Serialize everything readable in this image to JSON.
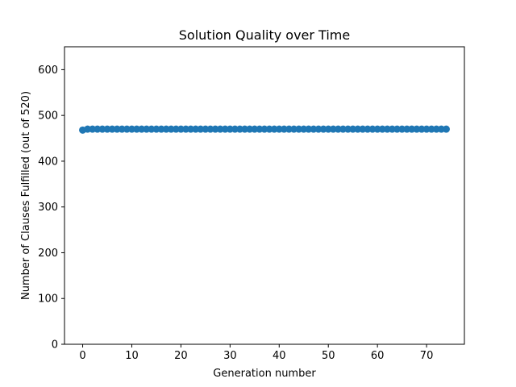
{
  "chart_data": {
    "type": "scatter",
    "title": "Solution Quality over Time",
    "xlabel": "Generation number",
    "ylabel": "Number of Clauses Fulfilled (out of 520)",
    "xlim": [
      -3.7,
      77.7
    ],
    "ylim": [
      0,
      650
    ],
    "xticks": [
      0,
      10,
      20,
      30,
      40,
      50,
      60,
      70
    ],
    "yticks": [
      0,
      100,
      200,
      300,
      400,
      500,
      600
    ],
    "grid": false,
    "series": [
      {
        "color": "#1f77b4",
        "x": [
          0,
          1,
          2,
          3,
          4,
          5,
          6,
          7,
          8,
          9,
          10,
          11,
          12,
          13,
          14,
          15,
          16,
          17,
          18,
          19,
          20,
          21,
          22,
          23,
          24,
          25,
          26,
          27,
          28,
          29,
          30,
          31,
          32,
          33,
          34,
          35,
          36,
          37,
          38,
          39,
          40,
          41,
          42,
          43,
          44,
          45,
          46,
          47,
          48,
          49,
          50,
          51,
          52,
          53,
          54,
          55,
          56,
          57,
          58,
          59,
          60,
          61,
          62,
          63,
          64,
          65,
          66,
          67,
          68,
          69,
          70,
          71,
          72,
          73,
          74
        ],
        "y": [
          468,
          470,
          470,
          470,
          470,
          470,
          470,
          470,
          470,
          470,
          470,
          470,
          470,
          470,
          470,
          470,
          470,
          470,
          470,
          470,
          470,
          470,
          470,
          470,
          470,
          470,
          470,
          470,
          470,
          470,
          470,
          470,
          470,
          470,
          470,
          470,
          470,
          470,
          470,
          470,
          470,
          470,
          470,
          470,
          470,
          470,
          470,
          470,
          470,
          470,
          470,
          470,
          470,
          470,
          470,
          470,
          470,
          470,
          470,
          470,
          470,
          470,
          470,
          470,
          470,
          470,
          470,
          470,
          470,
          470,
          470,
          470,
          470,
          470,
          470
        ]
      }
    ]
  }
}
